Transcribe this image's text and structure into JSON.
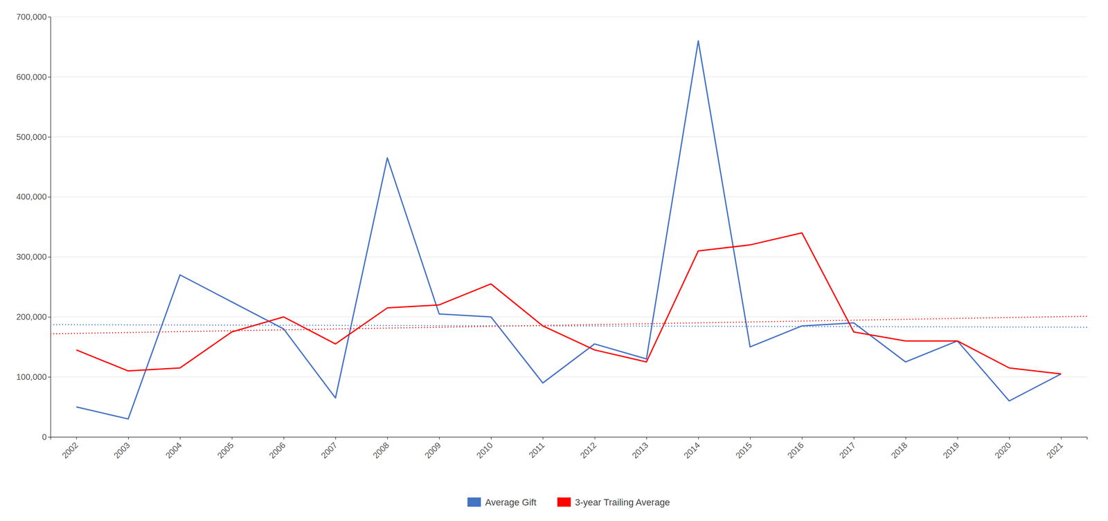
{
  "chart_data": {
    "type": "line",
    "x": [
      2002,
      2003,
      2004,
      2005,
      2006,
      2007,
      2008,
      2009,
      2010,
      2011,
      2012,
      2013,
      2014,
      2015,
      2016,
      2017,
      2018,
      2019,
      2020,
      2021
    ],
    "xlim": [
      2001.5,
      2021.5
    ],
    "xticks": [
      2002,
      2003,
      2004,
      2005,
      2006,
      2007,
      2008,
      2009,
      2010,
      2011,
      2012,
      2013,
      2014,
      2015,
      2016,
      2017,
      2018,
      2019,
      2020,
      2021
    ],
    "ylim": [
      0,
      700000
    ],
    "yticks": [
      0,
      {
        "value": 100000,
        "label": "100,000"
      },
      {
        "value": 200000,
        "label": "200,000"
      },
      {
        "value": 300000,
        "label": "300,000"
      },
      {
        "value": 400000,
        "label": "400,000"
      },
      {
        "value": 500000,
        "label": "500,000"
      },
      {
        "value": 600000,
        "label": "600,000"
      },
      {
        "value": 700000,
        "label": "700,000"
      }
    ],
    "grid": true,
    "legend": "bottom",
    "series": [
      {
        "name": "Average Gift",
        "color": "#4472C4",
        "values": [
          50000,
          30000,
          270000,
          225000,
          180000,
          65000,
          465000,
          205000,
          200000,
          90000,
          155000,
          130000,
          660000,
          150000,
          185000,
          190000,
          125000,
          160000,
          60000,
          105000
        ],
        "trend": {
          "x": [
            2001.5,
            2021.5
          ],
          "values": [
            187105.26315789475,
            182894.73684210525
          ],
          "color": "#4472C4",
          "line_style": "dotted"
        }
      },
      {
        "name": "3-year Trailing Average",
        "color": "#FF0000",
        "values": [
          145000,
          110000,
          115000,
          175000,
          200000,
          155000,
          215000,
          220000,
          255000,
          185000,
          145000,
          125000,
          310000,
          320000,
          340000,
          175000,
          160000,
          160000,
          115000,
          105000
        ],
        "trend": {
          "x": [
            2001.5,
            2021.5
          ],
          "values": [
            171838.34586466165,
            201161.65413533835
          ],
          "color": "#FF0000",
          "line_style": "dotted"
        }
      }
    ]
  }
}
